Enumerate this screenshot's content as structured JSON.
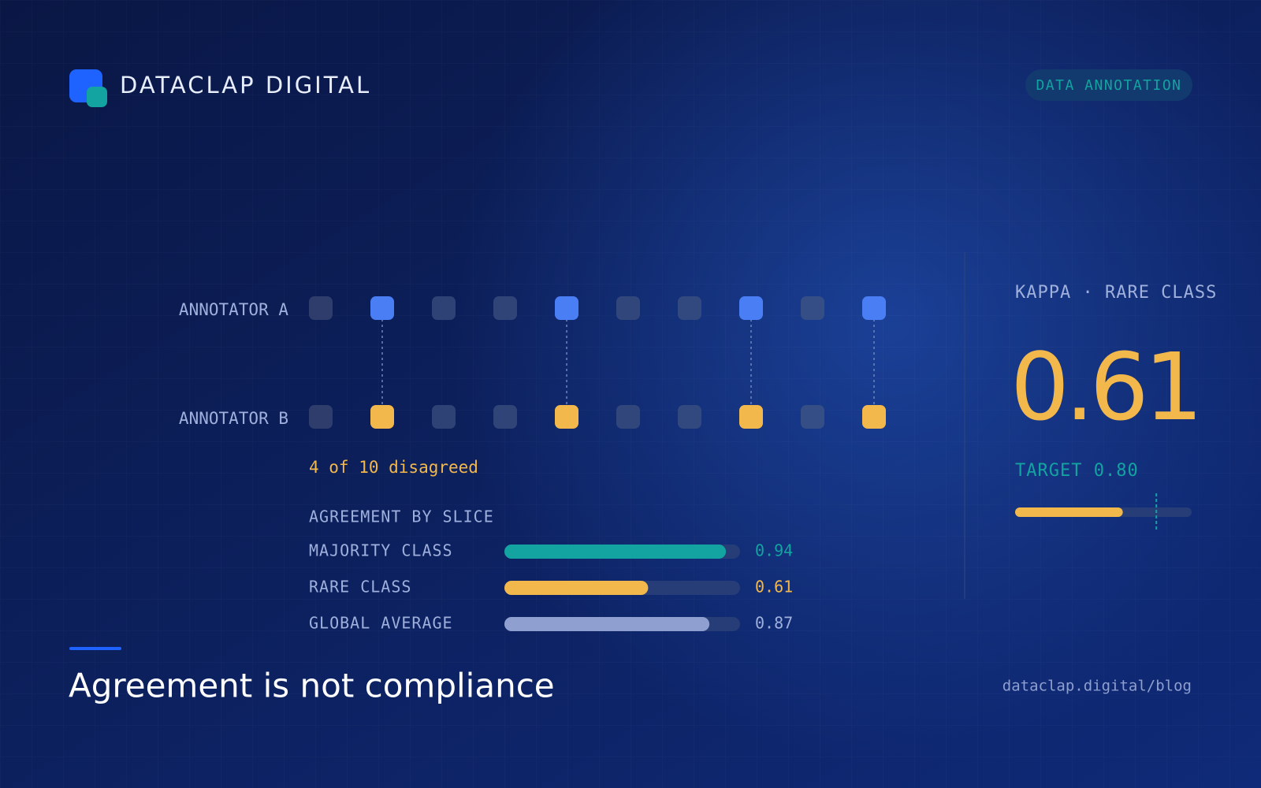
{
  "brand": {
    "name": "DATACLAP DIGITAL"
  },
  "tag": "DATA ANNOTATION",
  "annotators": {
    "labels": [
      "ANNOTATOR A",
      "ANNOTATOR B"
    ],
    "disagree": [
      false,
      true,
      false,
      false,
      true,
      false,
      false,
      true,
      false,
      true
    ],
    "summary": "4 of 10 disagreed"
  },
  "slices": {
    "title": "AGREEMENT BY SLICE",
    "xlim": [
      0,
      1
    ],
    "rows": [
      {
        "name": "MAJORITY CLASS",
        "value": 0.94,
        "color": "#13a3a0"
      },
      {
        "name": "RARE CLASS",
        "value": 0.61,
        "color": "#f2b84b"
      },
      {
        "name": "GLOBAL AVERAGE",
        "value": 0.87,
        "color": "#8e9fd0"
      }
    ]
  },
  "kappa": {
    "label": "KAPPA · RARE CLASS",
    "value": 0.61,
    "xlim": [
      0,
      1
    ],
    "target": {
      "value": 0.8,
      "label": "TARGET 0.80"
    }
  },
  "headline": "Agreement is not compliance",
  "url": "dataclap.digital/blog"
}
